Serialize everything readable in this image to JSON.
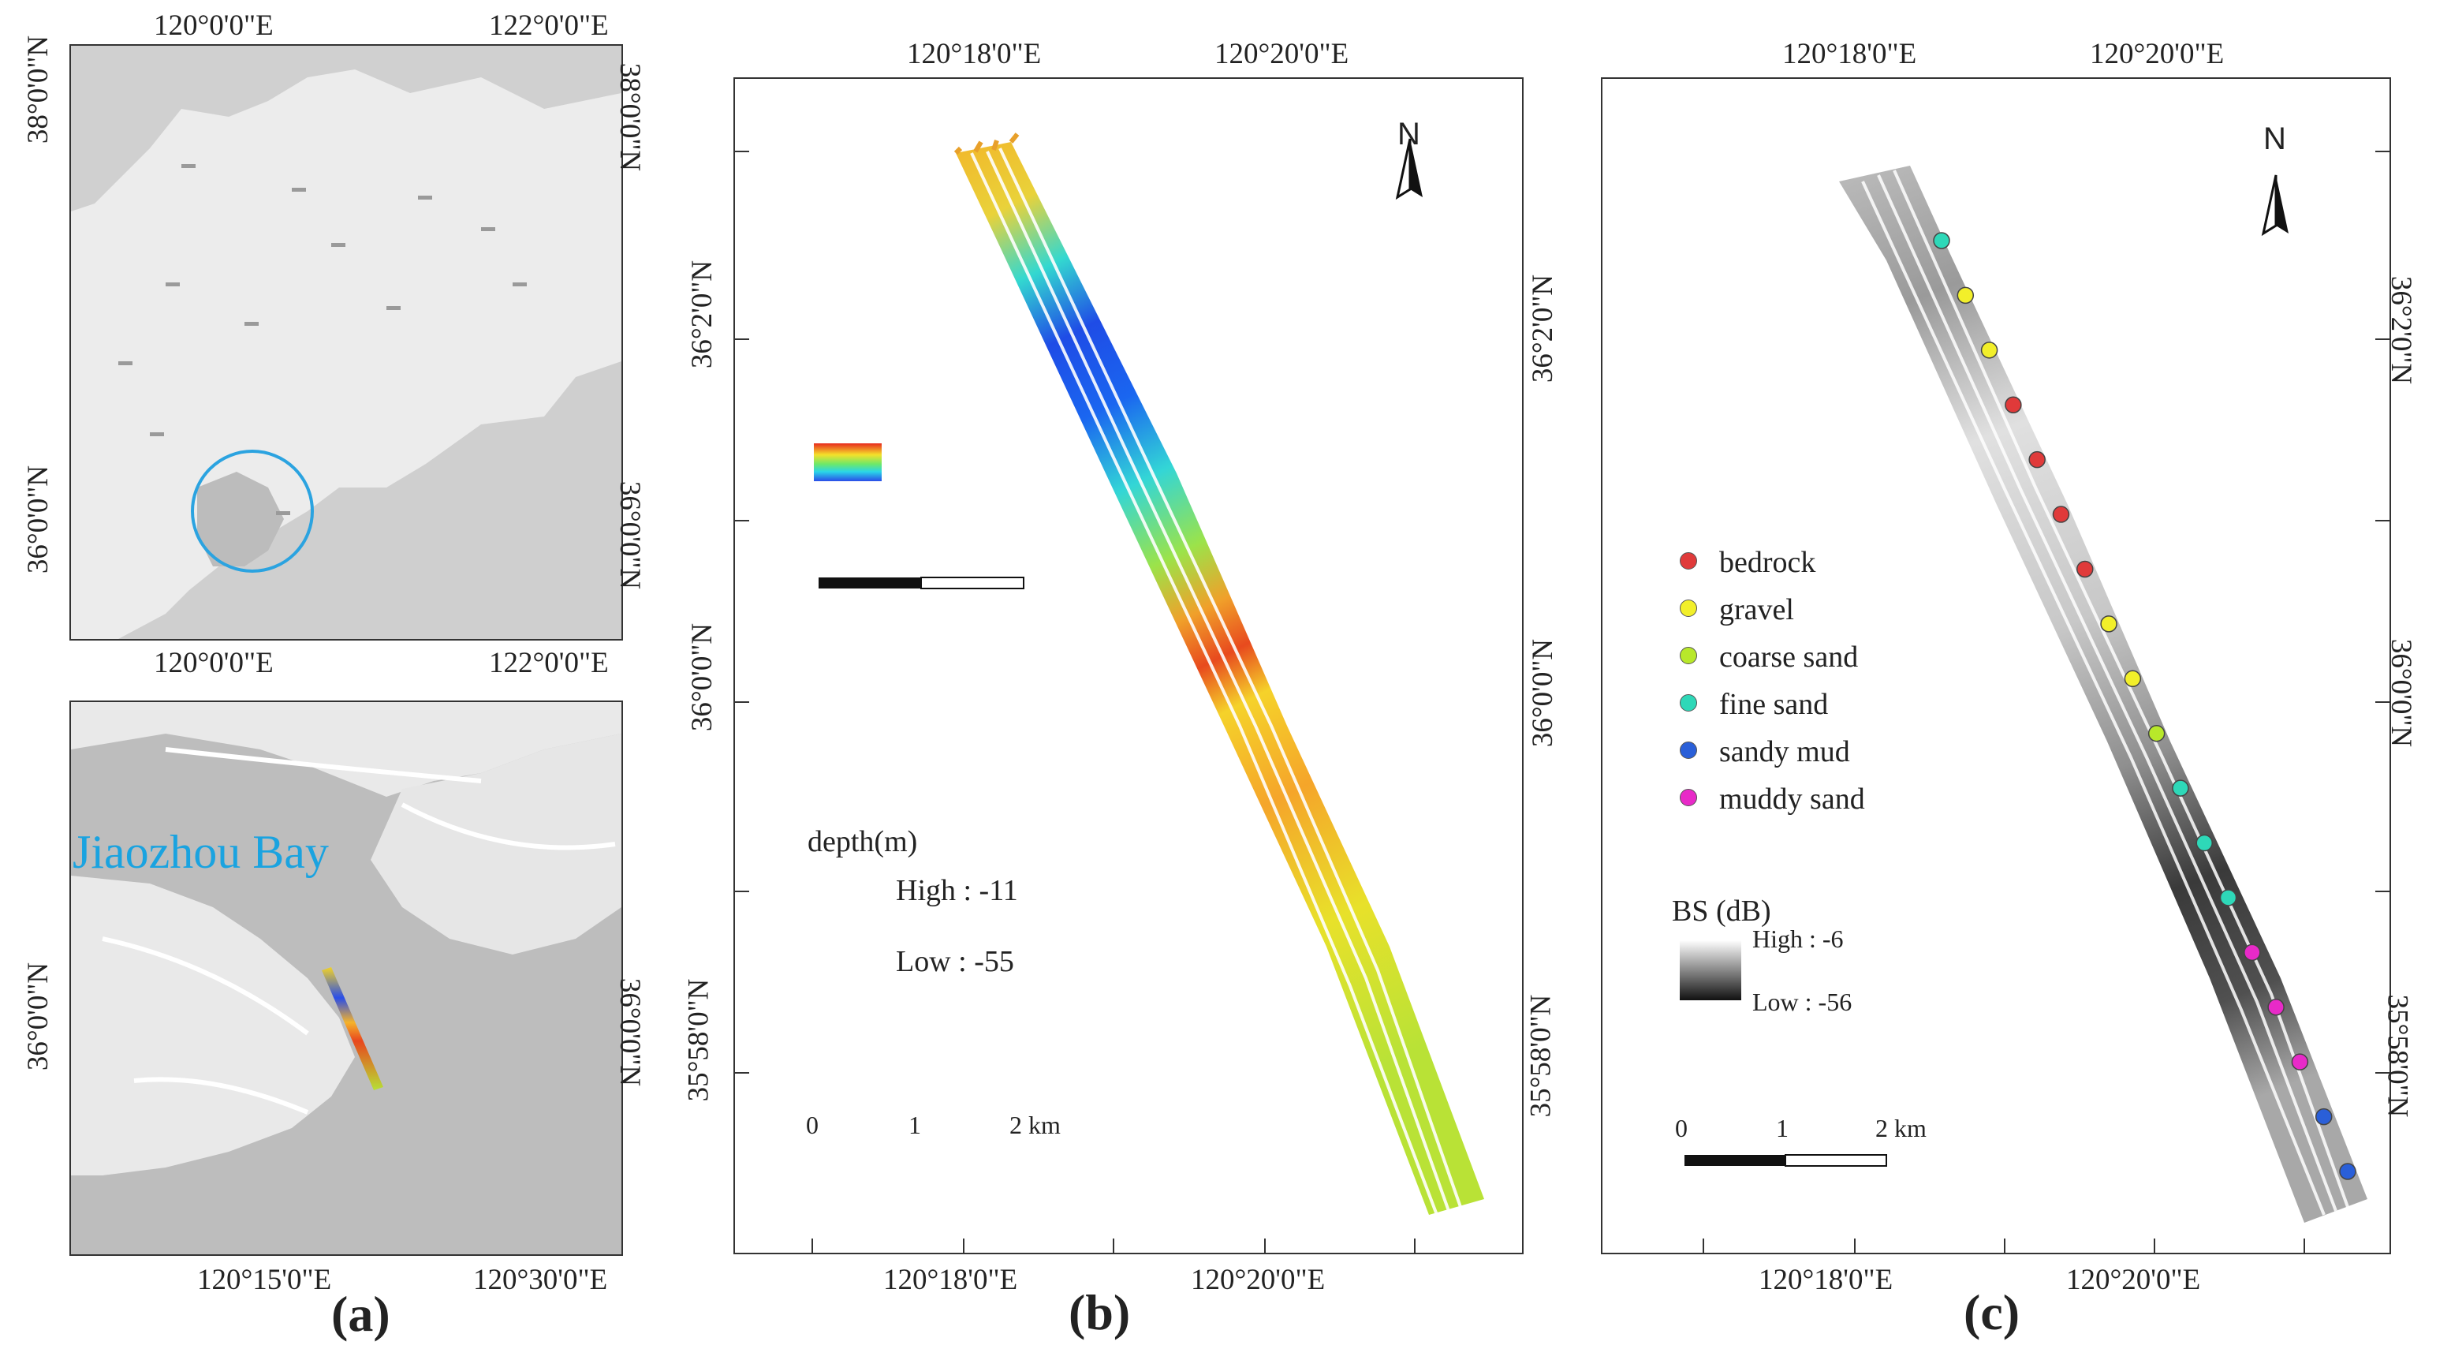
{
  "panel_a": {
    "caption": "(a)",
    "top_map": {
      "lon_ticks": [
        "120°0'0\"E",
        "122°0'0\"E"
      ],
      "lat_ticks": [
        "38°0'0\"N",
        "36°0'0\"N"
      ]
    },
    "bottom_map": {
      "title": "Jiaozhou Bay",
      "lon_ticks": [
        "120°15'0\"E",
        "120°30'0\"E"
      ],
      "lat_ticks": [
        "36°0'0\"N"
      ]
    }
  },
  "panel_b": {
    "caption": "(b)",
    "lon_ticks": [
      "120°18'0\"E",
      "120°20'0\"E"
    ],
    "lat_ticks": [
      "36°2'0\"N",
      "36°0'0\"N",
      "35°58'0\"N"
    ],
    "north_label": "N",
    "legend": {
      "title": "depth(m)",
      "high": "High : -11",
      "low": "Low  : -55"
    },
    "scale": {
      "labels": [
        "0",
        "1",
        "2 km"
      ]
    }
  },
  "panel_c": {
    "caption": "(c)",
    "lon_ticks": [
      "120°18'0\"E",
      "120°20'0\"E"
    ],
    "lat_ticks": [
      "36°2'0\"N",
      "36°0'0\"N",
      "35°58'0\"N"
    ],
    "north_label": "N",
    "sediment_legend": [
      {
        "label": "bedrock",
        "color": "#e03a3a"
      },
      {
        "label": "gravel",
        "color": "#f2ef2a"
      },
      {
        "label": "coarse sand",
        "color": "#b8e82a"
      },
      {
        "label": "fine sand",
        "color": "#2ed8b8"
      },
      {
        "label": "sandy mud",
        "color": "#2a5fd8"
      },
      {
        "label": "muddy sand",
        "color": "#e82ac8"
      }
    ],
    "bs_legend": {
      "title": "BS (dB)",
      "high": "High : -6",
      "low": "Low  : -56"
    },
    "scale": {
      "labels": [
        "0",
        "1",
        "2 km"
      ]
    },
    "sample_points": [
      "fine sand",
      "gravel",
      "gravel",
      "bedrock",
      "bedrock",
      "bedrock",
      "bedrock",
      "gravel",
      "gravel",
      "coarse sand",
      "fine sand",
      "fine sand",
      "fine sand",
      "muddy sand",
      "muddy sand",
      "muddy sand",
      "sandy mud",
      "sandy mud"
    ]
  }
}
